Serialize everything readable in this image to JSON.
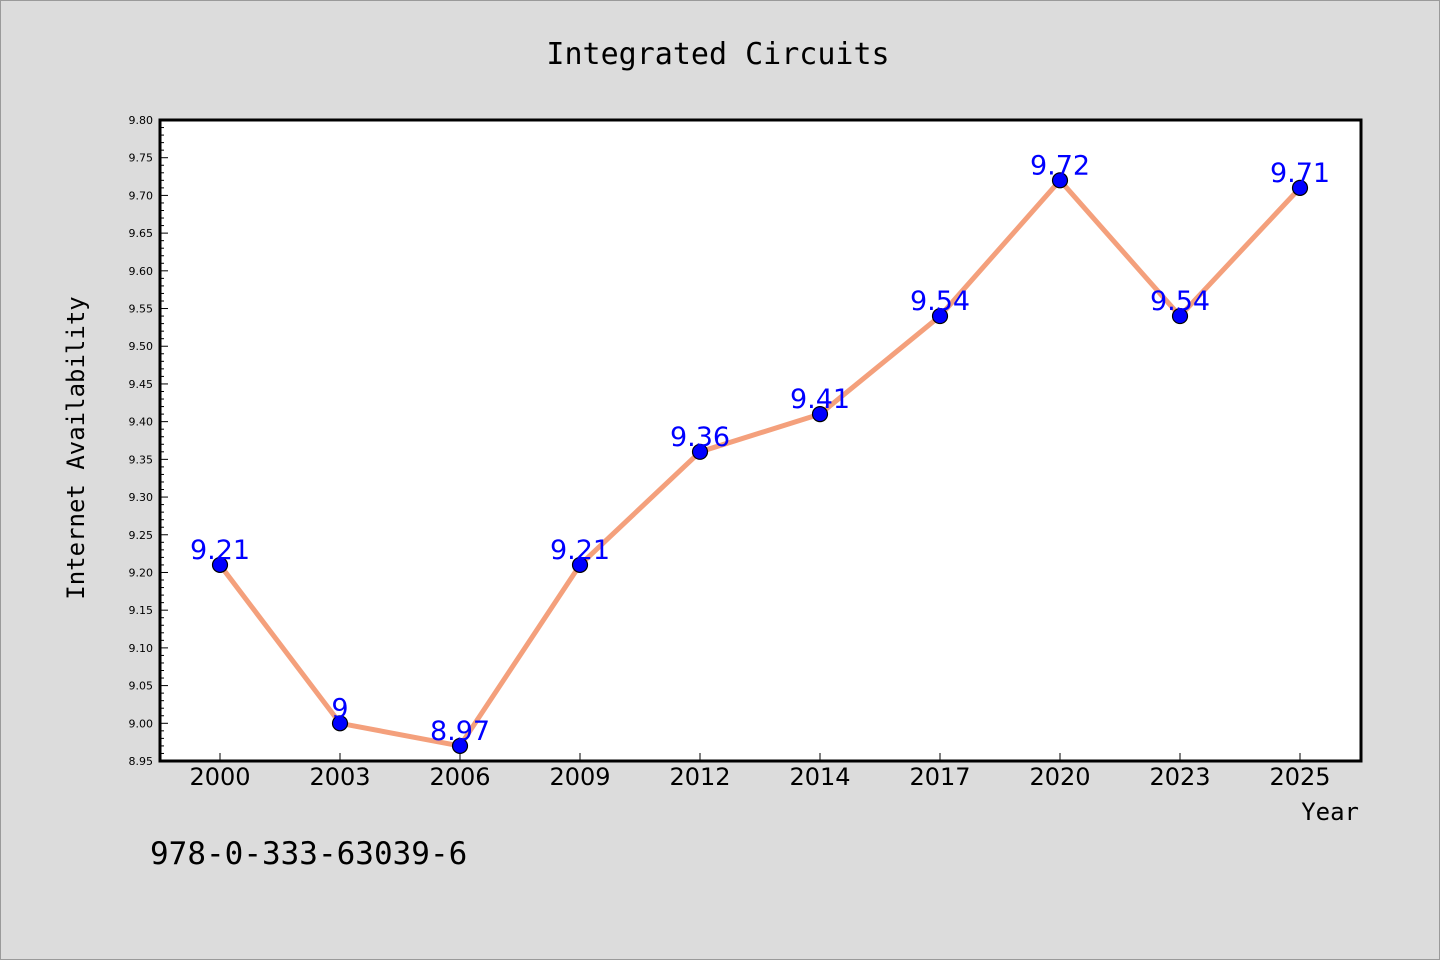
{
  "chart_data": {
    "type": "line",
    "title": "Integrated Circuits",
    "xlabel": "Year",
    "ylabel": "Internet Availability",
    "categories": [
      "2000",
      "2003",
      "2006",
      "2009",
      "2012",
      "2014",
      "2017",
      "2020",
      "2023",
      "2025"
    ],
    "values": [
      9.21,
      9.0,
      8.97,
      9.21,
      9.36,
      9.41,
      9.54,
      9.72,
      9.54,
      9.71
    ],
    "data_labels": [
      "9.21",
      "9",
      "8.97",
      "9.21",
      "9.36",
      "9.41",
      "9.54",
      "9.72",
      "9.54",
      "9.71"
    ],
    "ylim": [
      8.95,
      9.8
    ],
    "yticks": [
      "8.95",
      "9.00",
      "9.05",
      "9.10",
      "9.15",
      "9.20",
      "9.25",
      "9.30",
      "9.35",
      "9.40",
      "9.45",
      "9.50",
      "9.55",
      "9.60",
      "9.65",
      "9.70",
      "9.75",
      "9.80"
    ],
    "grid": false,
    "line_color": "#f4a07c",
    "marker_color": "#0000ff",
    "label_color": "#0000ff",
    "plot_background": "#ffffff",
    "figure_background": "#dcdcdc"
  },
  "footer": {
    "isbn": "978-0-333-63039-6"
  }
}
